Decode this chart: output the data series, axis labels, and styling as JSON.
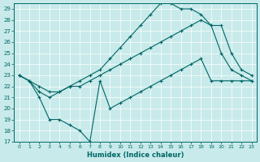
{
  "bg_color": "#c8eaea",
  "line_color": "#006666",
  "xlabel": "Humidex (Indice chaleur)",
  "xlim_min": -0.5,
  "xlim_max": 23.5,
  "ylim_min": 17,
  "ylim_max": 29.5,
  "xticks": [
    0,
    1,
    2,
    3,
    4,
    5,
    6,
    7,
    8,
    9,
    10,
    11,
    12,
    13,
    14,
    15,
    16,
    17,
    18,
    19,
    20,
    21,
    22,
    23
  ],
  "yticks": [
    17,
    18,
    19,
    20,
    21,
    22,
    23,
    24,
    25,
    26,
    27,
    28,
    29
  ],
  "line1_x": [
    0,
    1,
    2,
    3,
    4,
    5,
    6,
    7,
    8,
    9,
    10,
    11,
    12,
    13,
    14,
    15,
    16,
    17,
    18,
    19,
    20,
    21,
    22,
    23
  ],
  "line1_y": [
    23.0,
    22.5,
    21.0,
    19.0,
    19.0,
    18.5,
    18.0,
    17.0,
    22.5,
    20.0,
    20.5,
    21.0,
    21.5,
    22.0,
    22.5,
    23.0,
    23.5,
    24.0,
    24.5,
    22.5,
    22.5,
    22.5,
    22.5,
    22.5
  ],
  "line2_x": [
    0,
    1,
    2,
    3,
    4,
    5,
    6,
    7,
    8,
    9,
    10,
    11,
    12,
    13,
    14,
    15,
    16,
    17,
    18,
    19,
    20,
    21,
    22,
    23
  ],
  "line2_y": [
    23.0,
    22.5,
    22.0,
    21.5,
    21.5,
    22.0,
    22.0,
    22.5,
    23.0,
    23.5,
    24.0,
    24.5,
    25.0,
    25.5,
    26.0,
    26.5,
    27.0,
    27.5,
    28.0,
    27.5,
    25.0,
    23.5,
    23.0,
    22.5
  ],
  "line3_x": [
    0,
    1,
    2,
    3,
    4,
    5,
    6,
    7,
    8,
    9,
    10,
    11,
    12,
    13,
    14,
    15,
    16,
    17,
    18,
    19,
    20,
    21,
    22,
    23
  ],
  "line3_y": [
    23.0,
    22.5,
    21.5,
    21.0,
    21.5,
    22.0,
    22.5,
    23.0,
    23.5,
    24.5,
    25.5,
    26.5,
    27.5,
    28.5,
    29.5,
    29.5,
    29.0,
    29.0,
    28.5,
    27.5,
    27.5,
    25.0,
    23.5,
    23.0
  ]
}
